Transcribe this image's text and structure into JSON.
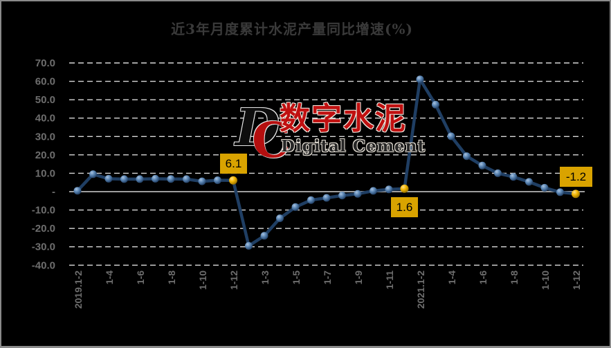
{
  "chart_data": {
    "type": "line",
    "title": "近3年月度累计水泥产量同比增速(%)",
    "categories": [
      "2019.1-2",
      "1-3",
      "1-4",
      "1-5",
      "1-6",
      "1-7",
      "1-8",
      "1-9",
      "1-10",
      "1-11",
      "1-12",
      "2020.1-2",
      "1-3",
      "1-4",
      "1-5",
      "1-6",
      "1-7",
      "1-8",
      "1-9",
      "1-10",
      "1-11",
      "1-12",
      "2021.1-2",
      "1-3",
      "1-4",
      "1-5",
      "1-6",
      "1-7",
      "1-8",
      "1-9",
      "1-10",
      "1-11",
      "1-12"
    ],
    "values": [
      0.5,
      9.5,
      7.0,
      6.8,
      6.8,
      7.0,
      6.9,
      6.8,
      5.6,
      6.2,
      6.1,
      -29.5,
      -24.0,
      -14.5,
      -8.4,
      -4.6,
      -3.4,
      -2.1,
      -1.2,
      0.4,
      1.2,
      1.6,
      61.1,
      47.3,
      30.1,
      19.3,
      14.2,
      10.0,
      8.0,
      5.3,
      2.1,
      -0.3,
      -1.2
    ],
    "ylim": [
      -40,
      70
    ],
    "ytick_step": 10,
    "yticks": [
      {
        "value": 70,
        "label": "70.0"
      },
      {
        "value": 60,
        "label": "60.0"
      },
      {
        "value": 50,
        "label": "50.0"
      },
      {
        "value": 40,
        "label": "40.0"
      },
      {
        "value": 30,
        "label": "30.0"
      },
      {
        "value": 20,
        "label": "20.0"
      },
      {
        "value": 10,
        "label": "10.0"
      },
      {
        "value": 0,
        "label": "-"
      },
      {
        "value": -10,
        "label": "-10.0"
      },
      {
        "value": -20,
        "label": "-20.0"
      },
      {
        "value": -30,
        "label": "-30.0"
      },
      {
        "value": -40,
        "label": "-40.0"
      }
    ],
    "xticks": [
      {
        "index": 0,
        "label": "2019.1-2"
      },
      {
        "index": 2,
        "label": "1-4"
      },
      {
        "index": 4,
        "label": "1-6"
      },
      {
        "index": 6,
        "label": "1-8"
      },
      {
        "index": 8,
        "label": "1-10"
      },
      {
        "index": 10,
        "label": "1-12"
      },
      {
        "index": 12,
        "label": "1-3"
      },
      {
        "index": 14,
        "label": "1-5"
      },
      {
        "index": 16,
        "label": "1-7"
      },
      {
        "index": 18,
        "label": "1-9"
      },
      {
        "index": 20,
        "label": "1-11"
      },
      {
        "index": 22,
        "label": "2021.1-2"
      },
      {
        "index": 24,
        "label": "1-4"
      },
      {
        "index": 26,
        "label": "1-6"
      },
      {
        "index": 28,
        "label": "1-8"
      },
      {
        "index": 30,
        "label": "1-10"
      },
      {
        "index": 32,
        "label": "1-12"
      }
    ],
    "highlights": [
      {
        "index": 10,
        "label": "6.1",
        "placement": "above"
      },
      {
        "index": 21,
        "label": "1.6",
        "placement": "below"
      },
      {
        "index": 32,
        "label": "-1.2",
        "placement": "above"
      }
    ],
    "grid": "horizontal-dashed",
    "legend_position": "none"
  },
  "watermark": {
    "logo_d": "D",
    "logo_c": "C",
    "name_cn": "数字水泥",
    "name_en": "Digital Cement"
  },
  "colors": {
    "background": "#000000",
    "frame_border": "#8a8a8a",
    "title": "#3a3a3a",
    "axis_label": "#6e6e6e",
    "gridline": "#d9d9d9",
    "zero_line": "#9e9e9e",
    "line": "#1f3e63",
    "marker_blue": "#4d79aa",
    "marker_gold": "#f2b705",
    "label_bg": "#d9a300",
    "label_text": "#000000",
    "watermark_red": "#c01010",
    "watermark_dark": "#262626"
  }
}
